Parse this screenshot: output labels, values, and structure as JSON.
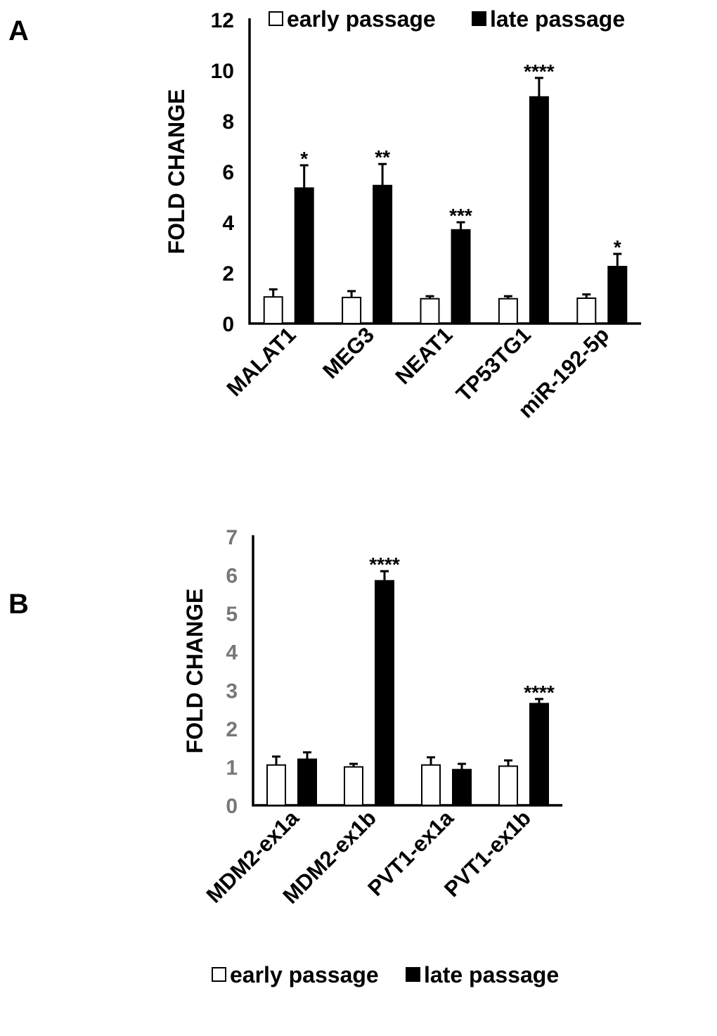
{
  "panels": {
    "a_label": "A",
    "b_label": "B"
  },
  "colors": {
    "early": "#ffffff",
    "late": "#000000",
    "axis": "#000000",
    "tick_a": "#000000",
    "tick_b": "#777777"
  },
  "chart_data": [
    {
      "type": "bar",
      "panel": "A",
      "ylabel": "FOLD CHANGE",
      "ylim": [
        0,
        12
      ],
      "yticks": [
        0,
        2,
        4,
        6,
        8,
        10,
        12
      ],
      "categories": [
        "MALAT1",
        "MEG3",
        "NEAT1",
        "TP53TG1",
        "miR-192-5p"
      ],
      "series": [
        {
          "name": "early passage",
          "values": [
            1.05,
            1.03,
            0.98,
            0.98,
            1.0
          ],
          "errors": [
            0.3,
            0.25,
            0.1,
            0.1,
            0.15
          ]
        },
        {
          "name": "late passage",
          "values": [
            5.35,
            5.45,
            3.7,
            8.95,
            2.25
          ],
          "errors": [
            0.9,
            0.85,
            0.3,
            0.75,
            0.5
          ]
        }
      ],
      "annotations": [
        "*",
        "**",
        "***",
        "****",
        "*"
      ],
      "legend_position": "top"
    },
    {
      "type": "bar",
      "panel": "B",
      "ylabel": "FOLD CHANGE",
      "ylim": [
        0,
        7
      ],
      "yticks": [
        0,
        1,
        2,
        3,
        4,
        5,
        6,
        7
      ],
      "categories": [
        "MDM2-ex1a",
        "MDM2-ex1b",
        "PVT1-ex1a",
        "PVT1-ex1b"
      ],
      "series": [
        {
          "name": "early passage",
          "values": [
            1.05,
            1.0,
            1.05,
            1.02
          ],
          "errors": [
            0.22,
            0.08,
            0.2,
            0.15
          ]
        },
        {
          "name": "late passage",
          "values": [
            1.2,
            5.85,
            0.93,
            2.65
          ],
          "errors": [
            0.18,
            0.25,
            0.15,
            0.12
          ]
        }
      ],
      "annotations": [
        "",
        "****",
        "",
        "****"
      ],
      "legend_position": "bottom"
    }
  ]
}
